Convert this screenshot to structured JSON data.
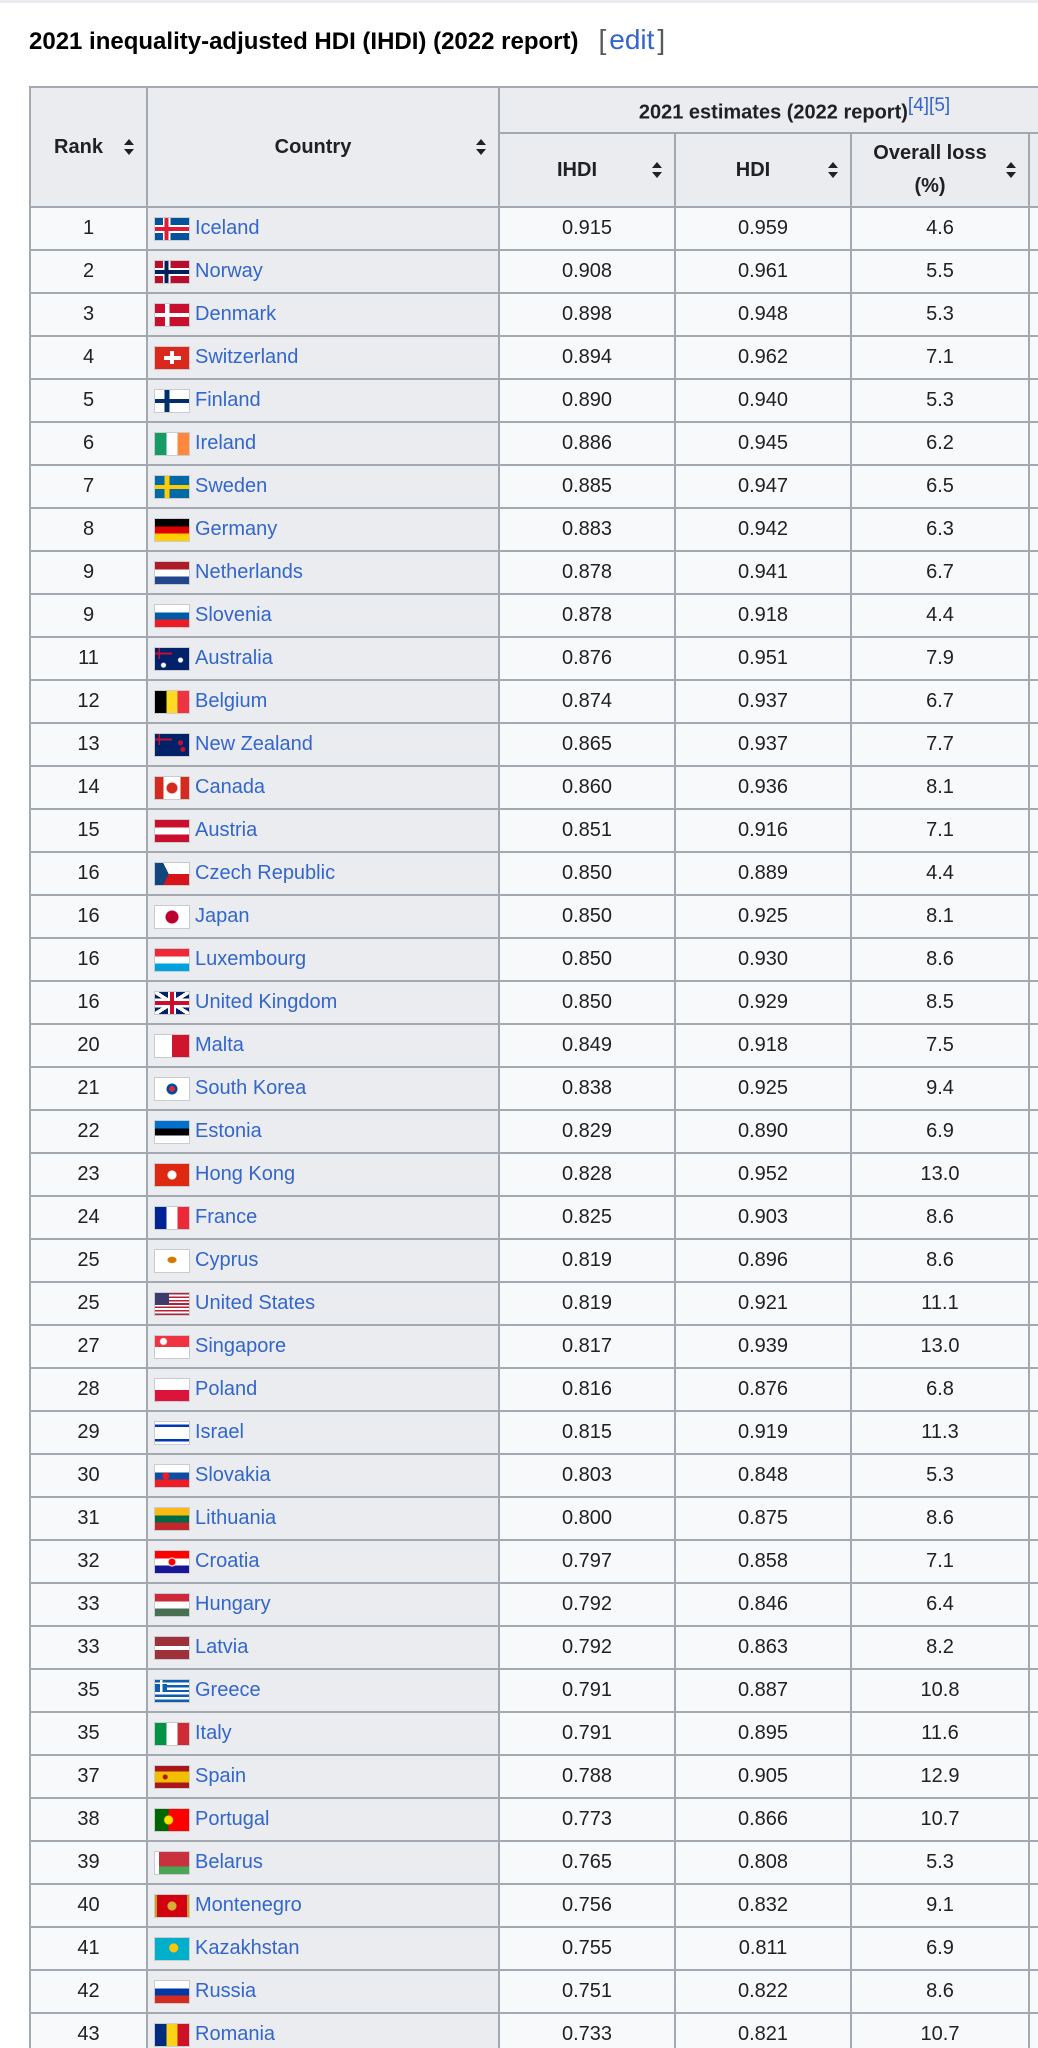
{
  "heading": {
    "title": "2021 inequality-adjusted HDI (IHDI) (2022 report)",
    "edit": "edit"
  },
  "table": {
    "headers": {
      "rank": "Rank",
      "country": "Country",
      "group": "2021 estimates (2022 report)",
      "group_refs": "[4][5]",
      "ihdi": "IHDI",
      "hdi": "HDI",
      "loss_line1": "Overall loss",
      "loss_line2": "(%)"
    },
    "rows": [
      {
        "rank": "1",
        "country": "Iceland",
        "ihdi": "0.915",
        "hdi": "0.959",
        "loss": "4.6",
        "flag": "is"
      },
      {
        "rank": "2",
        "country": "Norway",
        "ihdi": "0.908",
        "hdi": "0.961",
        "loss": "5.5",
        "flag": "no"
      },
      {
        "rank": "3",
        "country": "Denmark",
        "ihdi": "0.898",
        "hdi": "0.948",
        "loss": "5.3",
        "flag": "dk"
      },
      {
        "rank": "4",
        "country": "Switzerland",
        "ihdi": "0.894",
        "hdi": "0.962",
        "loss": "7.1",
        "flag": "ch"
      },
      {
        "rank": "5",
        "country": "Finland",
        "ihdi": "0.890",
        "hdi": "0.940",
        "loss": "5.3",
        "flag": "fi"
      },
      {
        "rank": "6",
        "country": "Ireland",
        "ihdi": "0.886",
        "hdi": "0.945",
        "loss": "6.2",
        "flag": "ie"
      },
      {
        "rank": "7",
        "country": "Sweden",
        "ihdi": "0.885",
        "hdi": "0.947",
        "loss": "6.5",
        "flag": "se"
      },
      {
        "rank": "8",
        "country": "Germany",
        "ihdi": "0.883",
        "hdi": "0.942",
        "loss": "6.3",
        "flag": "de"
      },
      {
        "rank": "9",
        "country": "Netherlands",
        "ihdi": "0.878",
        "hdi": "0.941",
        "loss": "6.7",
        "flag": "nl"
      },
      {
        "rank": "9",
        "country": "Slovenia",
        "ihdi": "0.878",
        "hdi": "0.918",
        "loss": "4.4",
        "flag": "si"
      },
      {
        "rank": "11",
        "country": "Australia",
        "ihdi": "0.876",
        "hdi": "0.951",
        "loss": "7.9",
        "flag": "au"
      },
      {
        "rank": "12",
        "country": "Belgium",
        "ihdi": "0.874",
        "hdi": "0.937",
        "loss": "6.7",
        "flag": "be"
      },
      {
        "rank": "13",
        "country": "New Zealand",
        "ihdi": "0.865",
        "hdi": "0.937",
        "loss": "7.7",
        "flag": "nz"
      },
      {
        "rank": "14",
        "country": "Canada",
        "ihdi": "0.860",
        "hdi": "0.936",
        "loss": "8.1",
        "flag": "ca"
      },
      {
        "rank": "15",
        "country": "Austria",
        "ihdi": "0.851",
        "hdi": "0.916",
        "loss": "7.1",
        "flag": "at"
      },
      {
        "rank": "16",
        "country": "Czech Republic",
        "ihdi": "0.850",
        "hdi": "0.889",
        "loss": "4.4",
        "flag": "cz"
      },
      {
        "rank": "16",
        "country": "Japan",
        "ihdi": "0.850",
        "hdi": "0.925",
        "loss": "8.1",
        "flag": "jp"
      },
      {
        "rank": "16",
        "country": "Luxembourg",
        "ihdi": "0.850",
        "hdi": "0.930",
        "loss": "8.6",
        "flag": "lu"
      },
      {
        "rank": "16",
        "country": "United Kingdom",
        "ihdi": "0.850",
        "hdi": "0.929",
        "loss": "8.5",
        "flag": "gb"
      },
      {
        "rank": "20",
        "country": "Malta",
        "ihdi": "0.849",
        "hdi": "0.918",
        "loss": "7.5",
        "flag": "mt"
      },
      {
        "rank": "21",
        "country": "South Korea",
        "ihdi": "0.838",
        "hdi": "0.925",
        "loss": "9.4",
        "flag": "kr"
      },
      {
        "rank": "22",
        "country": "Estonia",
        "ihdi": "0.829",
        "hdi": "0.890",
        "loss": "6.9",
        "flag": "ee"
      },
      {
        "rank": "23",
        "country": "Hong Kong",
        "ihdi": "0.828",
        "hdi": "0.952",
        "loss": "13.0",
        "flag": "hk"
      },
      {
        "rank": "24",
        "country": "France",
        "ihdi": "0.825",
        "hdi": "0.903",
        "loss": "8.6",
        "flag": "fr"
      },
      {
        "rank": "25",
        "country": "Cyprus",
        "ihdi": "0.819",
        "hdi": "0.896",
        "loss": "8.6",
        "flag": "cy"
      },
      {
        "rank": "25",
        "country": "United States",
        "ihdi": "0.819",
        "hdi": "0.921",
        "loss": "11.1",
        "flag": "us"
      },
      {
        "rank": "27",
        "country": "Singapore",
        "ihdi": "0.817",
        "hdi": "0.939",
        "loss": "13.0",
        "flag": "sg"
      },
      {
        "rank": "28",
        "country": "Poland",
        "ihdi": "0.816",
        "hdi": "0.876",
        "loss": "6.8",
        "flag": "pl"
      },
      {
        "rank": "29",
        "country": "Israel",
        "ihdi": "0.815",
        "hdi": "0.919",
        "loss": "11.3",
        "flag": "il"
      },
      {
        "rank": "30",
        "country": "Slovakia",
        "ihdi": "0.803",
        "hdi": "0.848",
        "loss": "5.3",
        "flag": "sk"
      },
      {
        "rank": "31",
        "country": "Lithuania",
        "ihdi": "0.800",
        "hdi": "0.875",
        "loss": "8.6",
        "flag": "lt"
      },
      {
        "rank": "32",
        "country": "Croatia",
        "ihdi": "0.797",
        "hdi": "0.858",
        "loss": "7.1",
        "flag": "hr"
      },
      {
        "rank": "33",
        "country": "Hungary",
        "ihdi": "0.792",
        "hdi": "0.846",
        "loss": "6.4",
        "flag": "hu"
      },
      {
        "rank": "33",
        "country": "Latvia",
        "ihdi": "0.792",
        "hdi": "0.863",
        "loss": "8.2",
        "flag": "lv"
      },
      {
        "rank": "35",
        "country": "Greece",
        "ihdi": "0.791",
        "hdi": "0.887",
        "loss": "10.8",
        "flag": "gr"
      },
      {
        "rank": "35",
        "country": "Italy",
        "ihdi": "0.791",
        "hdi": "0.895",
        "loss": "11.6",
        "flag": "it"
      },
      {
        "rank": "37",
        "country": "Spain",
        "ihdi": "0.788",
        "hdi": "0.905",
        "loss": "12.9",
        "flag": "es"
      },
      {
        "rank": "38",
        "country": "Portugal",
        "ihdi": "0.773",
        "hdi": "0.866",
        "loss": "10.7",
        "flag": "pt"
      },
      {
        "rank": "39",
        "country": "Belarus",
        "ihdi": "0.765",
        "hdi": "0.808",
        "loss": "5.3",
        "flag": "by"
      },
      {
        "rank": "40",
        "country": "Montenegro",
        "ihdi": "0.756",
        "hdi": "0.832",
        "loss": "9.1",
        "flag": "me"
      },
      {
        "rank": "41",
        "country": "Kazakhstan",
        "ihdi": "0.755",
        "hdi": "0.811",
        "loss": "6.9",
        "flag": "kz"
      },
      {
        "rank": "42",
        "country": "Russia",
        "ihdi": "0.751",
        "hdi": "0.822",
        "loss": "8.6",
        "flag": "ru"
      },
      {
        "rank": "43",
        "country": "Romania",
        "ihdi": "0.733",
        "hdi": "0.821",
        "loss": "10.7",
        "flag": "ro"
      }
    ]
  }
}
